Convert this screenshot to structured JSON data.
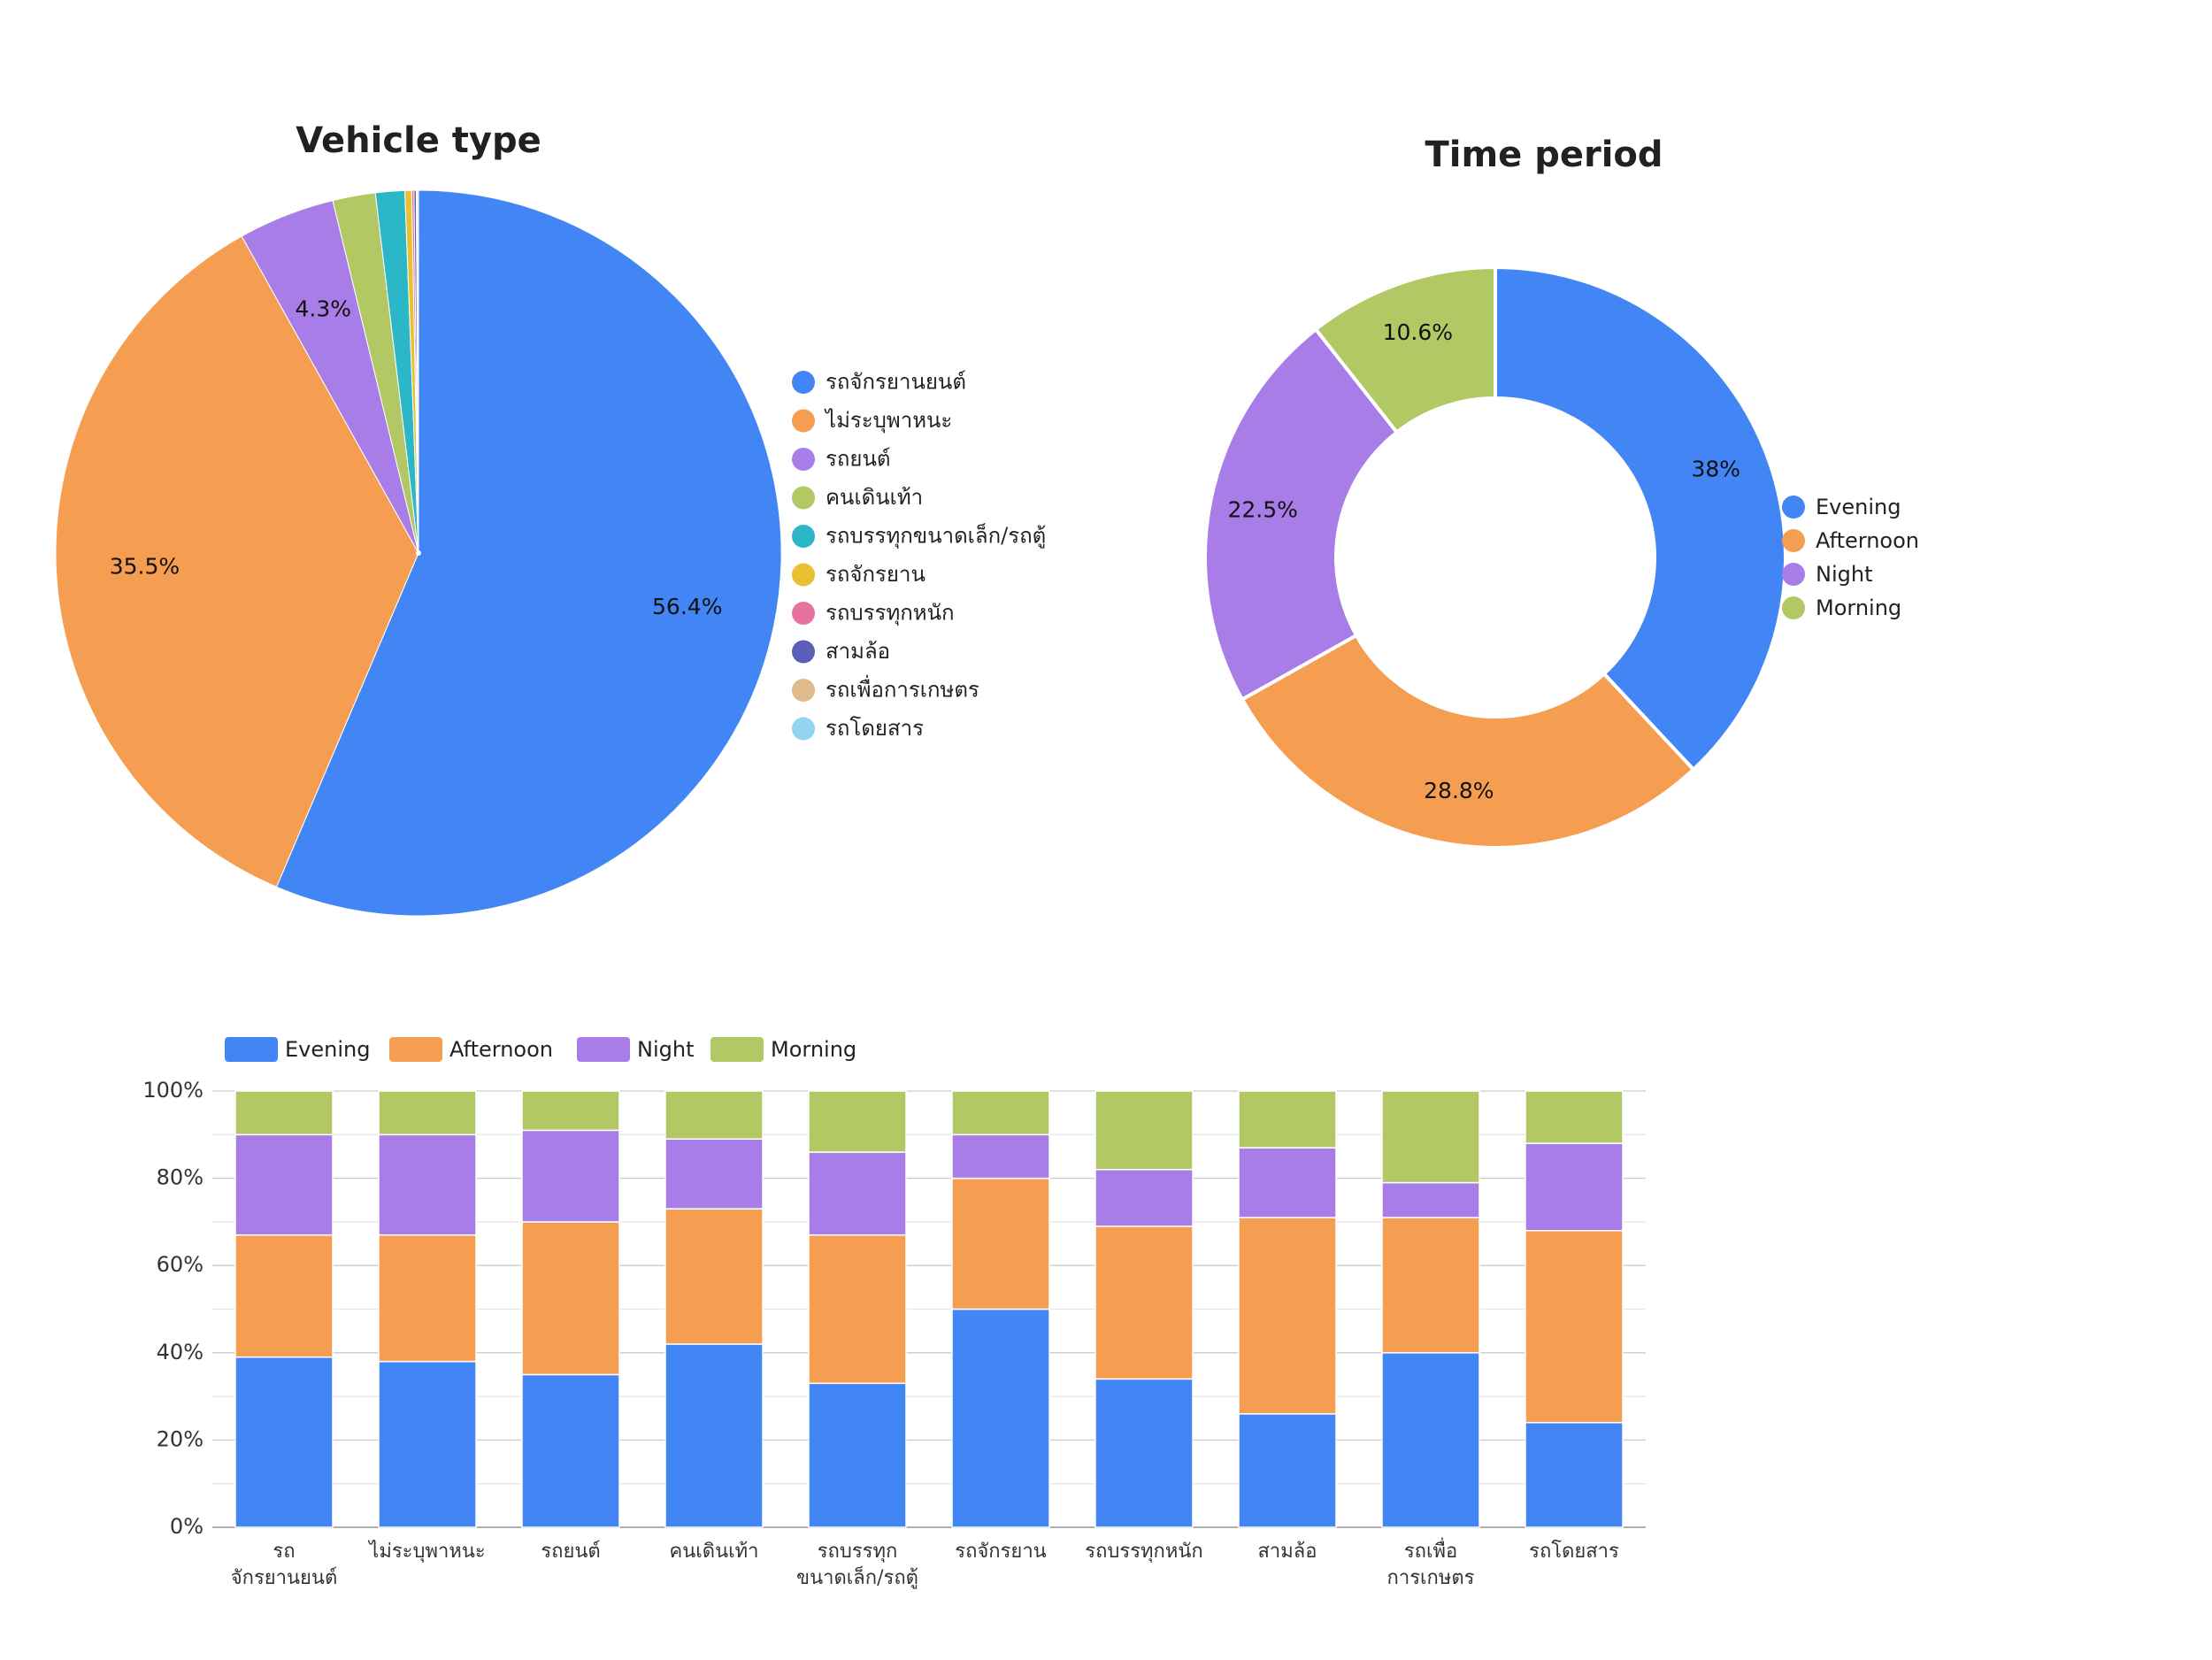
{
  "colors": {
    "blue": "#4285f4",
    "orange": "#f59e52",
    "purple": "#a87de8",
    "green": "#b2c865",
    "teal": "#2bb7c8",
    "yellow": "#e8c131",
    "pink": "#e6729f",
    "indigo": "#5b5fb7",
    "tan": "#dfba8b",
    "lightblue": "#93d4f0"
  },
  "chart_data": [
    {
      "type": "pie",
      "title": "Vehicle type",
      "legend_position": "right",
      "slices": [
        {
          "label": "รถจักรยานยนต์",
          "value": 56.4,
          "display": "56.4%",
          "color": "#4285f4"
        },
        {
          "label": "ไม่ระบุพาหนะ",
          "value": 35.5,
          "display": "35.5%",
          "color": "#f59e52"
        },
        {
          "label": "รถยนต์",
          "value": 4.3,
          "display": "4.3%",
          "color": "#a87de8"
        },
        {
          "label": "คนเดินเท้า",
          "value": 1.9,
          "display": "",
          "color": "#b2c865"
        },
        {
          "label": "รถบรรทุกขนาดเล็ก/รถตู้",
          "value": 1.3,
          "display": "",
          "color": "#2bb7c8"
        },
        {
          "label": "รถจักรยาน",
          "value": 0.3,
          "display": "",
          "color": "#e8c131"
        },
        {
          "label": "รถบรรทุกหนัก",
          "value": 0.1,
          "display": "",
          "color": "#e6729f"
        },
        {
          "label": "สามล้อ",
          "value": 0.1,
          "display": "",
          "color": "#5b5fb7"
        },
        {
          "label": "รถเพื่อการเกษตร",
          "value": 0.05,
          "display": "",
          "color": "#dfba8b"
        },
        {
          "label": "รถโดยสาร",
          "value": 0.05,
          "display": "",
          "color": "#93d4f0"
        }
      ]
    },
    {
      "type": "pie",
      "subtype": "donut",
      "title": "Time period",
      "legend_position": "right",
      "slices": [
        {
          "label": "Evening",
          "value": 38,
          "display": "38%",
          "color": "#4285f4"
        },
        {
          "label": "Afternoon",
          "value": 28.8,
          "display": "28.8%",
          "color": "#f59e52"
        },
        {
          "label": "Night",
          "value": 22.5,
          "display": "22.5%",
          "color": "#a87de8"
        },
        {
          "label": "Morning",
          "value": 10.6,
          "display": "10.6%",
          "color": "#b2c865"
        }
      ]
    },
    {
      "type": "bar",
      "subtype": "100% stacked",
      "legend_position": "top",
      "categories": [
        [
          "รถ",
          "จักรยานยนต์"
        ],
        [
          "ไม่ระบุพาหนะ"
        ],
        [
          "รถยนต์"
        ],
        [
          "คนเดินเท้า"
        ],
        [
          "รถบรรทุก",
          "ขนาดเล็ก/รถตู้"
        ],
        [
          "รถจักรยาน"
        ],
        [
          "รถบรรทุกหนัก"
        ],
        [
          "สามล้อ"
        ],
        [
          "รถเพื่อ",
          "การเกษตร"
        ],
        [
          "รถโดยสาร"
        ]
      ],
      "ylim": [
        0,
        100
      ],
      "yticks": [
        "0%",
        "20%",
        "40%",
        "60%",
        "80%",
        "100%"
      ],
      "grid": true,
      "series": [
        {
          "name": "Evening",
          "color": "#4285f4",
          "values": [
            39,
            38,
            35,
            42,
            33,
            50,
            34,
            26,
            40,
            24
          ]
        },
        {
          "name": "Afternoon",
          "color": "#f59e52",
          "values": [
            28,
            29,
            35,
            31,
            34,
            30,
            35,
            45,
            31,
            44
          ]
        },
        {
          "name": "Night",
          "color": "#a87de8",
          "values": [
            23,
            23,
            21,
            16,
            19,
            10,
            13,
            16,
            8,
            20
          ]
        },
        {
          "name": "Morning",
          "color": "#b2c865",
          "values": [
            10,
            10,
            9,
            11,
            14,
            10,
            18,
            13,
            21,
            12
          ]
        }
      ]
    }
  ]
}
